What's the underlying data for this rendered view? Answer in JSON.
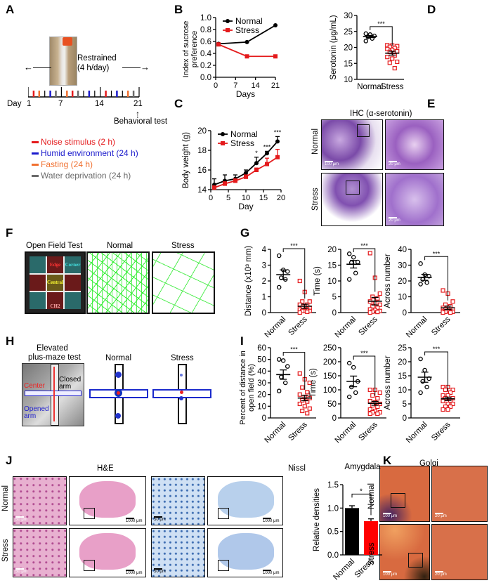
{
  "figure": {
    "panel_labels": [
      "A",
      "B",
      "C",
      "D",
      "E",
      "F",
      "G",
      "H",
      "I",
      "J",
      "K"
    ],
    "A": {
      "restrained": "Restrained",
      "restrained_duration": "(4 h/day)",
      "day_prefix": "Day",
      "day_ticks": [
        "1",
        "7",
        "14",
        "21"
      ],
      "behavioral_test": "Behavioral test",
      "legend": [
        {
          "label": "Noise stimulus (2 h)",
          "color": "#e41a1c"
        },
        {
          "label": "Humid environment (24 h)",
          "color": "#1a1acc"
        },
        {
          "label": "Fasting (24 h)",
          "color": "#f07030"
        },
        {
          "label": "Water deprivation (24 h)",
          "color": "#6a6a6a"
        }
      ],
      "schedule": [
        {
          "day": 2,
          "type": 0
        },
        {
          "day": 3,
          "type": 2
        },
        {
          "day": 5,
          "type": 1
        },
        {
          "day": 6,
          "type": 3
        },
        {
          "day": 8,
          "type": 2
        },
        {
          "day": 9,
          "type": 0
        },
        {
          "day": 10,
          "type": 3
        },
        {
          "day": 12,
          "type": 1
        },
        {
          "day": 15,
          "type": 0
        },
        {
          "day": 17,
          "type": 1
        },
        {
          "day": 19,
          "type": 2
        },
        {
          "day": 20,
          "type": 3
        }
      ]
    },
    "E": {
      "title": "IHC (α-serotonin)",
      "row_normal": "Normal",
      "row_stress": "Stress",
      "scale_100": "100 μm",
      "scale_20": "20 μm"
    },
    "F": {
      "title": "Open Field Test",
      "col_normal": "Normal",
      "col_stress": "Stress",
      "zones": [
        "Edge",
        "Corner",
        "Central",
        "CH2"
      ]
    },
    "H": {
      "title_line1": "Elevated",
      "title_line2": "plus-maze test",
      "col_normal": "Normal",
      "col_stress": "Stress",
      "center": "Center",
      "closed_arm": "Closed arm",
      "opened_arm": "Opened arm"
    },
    "J": {
      "he_title": "H&E",
      "nissl_title": "Nissl",
      "row_normal": "Normal",
      "row_stress": "Stress",
      "scale_50": "50 μm",
      "scale_1000": "1000 μm"
    },
    "K": {
      "title": "Golgi",
      "row_normal": "Normal",
      "row_stress": "Stress",
      "scale_100": "100 μm",
      "scale_20": "20 μm"
    }
  },
  "chart_data": [
    {
      "id": "B",
      "type": "line",
      "xlabel": "Days",
      "ylabel": "Index of sucrose preference",
      "xlim": [
        0,
        21
      ],
      "ylim": [
        0,
        1.0
      ],
      "xticks": [
        "0",
        "7",
        "14",
        "21"
      ],
      "yticks": [
        "0.0",
        "0.2",
        "0.4",
        "0.6",
        "0.8",
        "1.0"
      ],
      "legend": "top-left",
      "series": [
        {
          "name": "Normal",
          "color": "#000000",
          "x": [
            1,
            11,
            21
          ],
          "y": [
            0.56,
            0.59,
            0.87
          ]
        },
        {
          "name": "Stress",
          "color": "#e41a1c",
          "x": [
            1,
            11,
            21
          ],
          "y": [
            0.55,
            0.35,
            0.35
          ]
        }
      ]
    },
    {
      "id": "C",
      "type": "line",
      "xlabel": "Day",
      "ylabel": "Body weight (g)",
      "xlim": [
        0,
        20
      ],
      "ylim": [
        14,
        20
      ],
      "xticks": [
        "0",
        "5",
        "10",
        "15",
        "20"
      ],
      "yticks": [
        "14",
        "16",
        "18",
        "20"
      ],
      "legend": "top-left",
      "series": [
        {
          "name": "Normal",
          "color": "#000000",
          "x": [
            1,
            4,
            7,
            10,
            13,
            16,
            19
          ],
          "y": [
            14.5,
            14.9,
            15.1,
            15.7,
            16.7,
            17.7,
            18.9
          ],
          "err": [
            0.6,
            0.6,
            0.4,
            0.3,
            0.6,
            0.2,
            0.5
          ]
        },
        {
          "name": "Stress",
          "color": "#e41a1c",
          "x": [
            1,
            4,
            7,
            10,
            13,
            16,
            19
          ],
          "y": [
            14.2,
            14.6,
            14.9,
            15.3,
            16.0,
            16.6,
            17.3
          ],
          "err": [
            0.2,
            0.2,
            0.2,
            0.2,
            0.2,
            0.6,
            0.8
          ]
        }
      ],
      "annotations": [
        {
          "x": 13,
          "text": "*"
        },
        {
          "x": 16,
          "text": "***"
        },
        {
          "x": 19,
          "text": "***"
        }
      ]
    },
    {
      "id": "D",
      "type": "scatter",
      "ylabel": "Serotonin (μg/mL)",
      "ylim": [
        10,
        30
      ],
      "yticks": [
        "10",
        "15",
        "20",
        "25",
        "30"
      ],
      "categories": [
        "Normal",
        "Stress"
      ],
      "significance": "***",
      "series": [
        {
          "name": "Normal",
          "values": [
            24.3,
            24.0,
            23.6,
            23.3,
            22.8,
            22.0
          ],
          "mean": 23.4,
          "sem": 0.35
        },
        {
          "name": "Stress",
          "values": [
            20.7,
            20.6,
            20.4,
            20.2,
            19.8,
            19.5,
            19.2,
            18.8,
            18.6,
            17.5,
            17.0,
            16.5,
            15.5,
            15.2,
            13.5
          ],
          "mean": 18.2,
          "sem": 0.6
        }
      ]
    },
    {
      "id": "G1",
      "type": "scatter",
      "ylabel": "Distance (x10³ mm)",
      "ylim": [
        0,
        4
      ],
      "yticks": [
        "0",
        "1",
        "2",
        "3",
        "4"
      ],
      "categories": [
        "Normal",
        "Stress"
      ],
      "significance": "***",
      "series": [
        {
          "name": "Normal",
          "values": [
            3.6,
            2.7,
            2.6,
            2.2,
            2.1,
            1.6
          ],
          "mean": 2.4,
          "sem": 0.3
        },
        {
          "name": "Stress",
          "values": [
            2.0,
            1.3,
            0.7,
            0.7,
            0.5,
            0.5,
            0.4,
            0.3,
            0.3,
            0.2,
            0.2,
            0.1,
            0.1,
            0.1,
            0.05,
            0.0
          ],
          "mean": 0.4,
          "sem": 0.13
        }
      ]
    },
    {
      "id": "G2",
      "type": "scatter",
      "ylabel": "Time (s)",
      "ylim": [
        0,
        20
      ],
      "yticks": [
        "0",
        "5",
        "10",
        "15",
        "20"
      ],
      "categories": [
        "Normal",
        "Stress"
      ],
      "significance": "***",
      "series": [
        {
          "name": "Normal",
          "values": [
            18.6,
            17.5,
            16.0,
            15.8,
            12.5,
            10.5
          ],
          "mean": 15.3,
          "sem": 1.2
        },
        {
          "name": "Stress",
          "values": [
            18.8,
            11.0,
            6.0,
            5.0,
            4.5,
            3.5,
            3.0,
            2.5,
            2.0,
            1.5,
            1.0,
            0.8,
            0.5,
            0.3,
            0.2,
            0.0
          ],
          "mean": 3.6,
          "sem": 1.2
        }
      ]
    },
    {
      "id": "G3",
      "type": "scatter",
      "ylabel": "Across number",
      "ylim": [
        0,
        40
      ],
      "yticks": [
        "0",
        "10",
        "20",
        "30",
        "40"
      ],
      "categories": [
        "Normal",
        "Stress"
      ],
      "significance": "***",
      "series": [
        {
          "name": "Normal",
          "values": [
            31,
            24,
            23,
            21,
            19,
            18
          ],
          "mean": 22.3,
          "sem": 1.9
        },
        {
          "name": "Stress",
          "values": [
            14,
            12,
            7,
            5,
            4,
            3,
            3,
            2,
            2,
            1,
            1,
            1,
            0.5,
            0.5,
            0,
            0
          ],
          "mean": 3.0,
          "sem": 1.1
        }
      ]
    },
    {
      "id": "I1",
      "type": "scatter",
      "ylabel": "Percent of distance in open field (%)",
      "ylim": [
        0,
        60
      ],
      "yticks": [
        "0",
        "10",
        "20",
        "30",
        "40",
        "50",
        "60"
      ],
      "categories": [
        "Normal",
        "Stress"
      ],
      "significance": "***",
      "series": [
        {
          "name": "Normal",
          "values": [
            50,
            49,
            44,
            35,
            30,
            23
          ],
          "mean": 37,
          "sem": 4
        },
        {
          "name": "Stress",
          "values": [
            38,
            33,
            30,
            26,
            22,
            20,
            18,
            17,
            15,
            14,
            12,
            10,
            8,
            6,
            4
          ],
          "mean": 17,
          "sem": 2.3
        }
      ]
    },
    {
      "id": "I2",
      "type": "scatter",
      "ylabel": "Time (s)",
      "ylim": [
        0,
        250
      ],
      "yticks": [
        "0",
        "50",
        "100",
        "150",
        "200",
        "250"
      ],
      "categories": [
        "Normal",
        "Stress"
      ],
      "significance": "***",
      "series": [
        {
          "name": "Normal",
          "values": [
            195,
            180,
            130,
            110,
            90,
            75
          ],
          "mean": 130,
          "sem": 19
        },
        {
          "name": "Stress",
          "values": [
            100,
            100,
            90,
            80,
            70,
            60,
            55,
            50,
            45,
            40,
            30,
            25,
            20,
            20,
            15,
            15
          ],
          "mean": 52,
          "sem": 7
        }
      ]
    },
    {
      "id": "I3",
      "type": "scatter",
      "ylabel": "Across number",
      "ylim": [
        0,
        25
      ],
      "yticks": [
        "0",
        "5",
        "10",
        "15",
        "20",
        "25"
      ],
      "categories": [
        "Normal",
        "Stress"
      ],
      "significance": "***",
      "series": [
        {
          "name": "Normal",
          "values": [
            21,
            17,
            14,
            13,
            11,
            9
          ],
          "mean": 14.5,
          "sem": 1.8
        },
        {
          "name": "Stress",
          "values": [
            11,
            11,
            10,
            10,
            9,
            8,
            8,
            7,
            7,
            6,
            6,
            5,
            5,
            4,
            4,
            3,
            3
          ],
          "mean": 6.8,
          "sem": 0.6
        }
      ]
    },
    {
      "id": "J",
      "type": "bar",
      "title": "Amygdala",
      "ylabel": "Relative densities",
      "ylim": [
        0,
        1.5
      ],
      "yticks": [
        "0.0",
        "0.5",
        "1.0",
        "1.5"
      ],
      "categories": [
        "Normal",
        "Stress"
      ],
      "significance": "*",
      "values": [
        1.0,
        0.72
      ],
      "err": [
        0.05,
        0.05
      ],
      "colors": [
        "#000000",
        "#ff0000"
      ]
    }
  ]
}
